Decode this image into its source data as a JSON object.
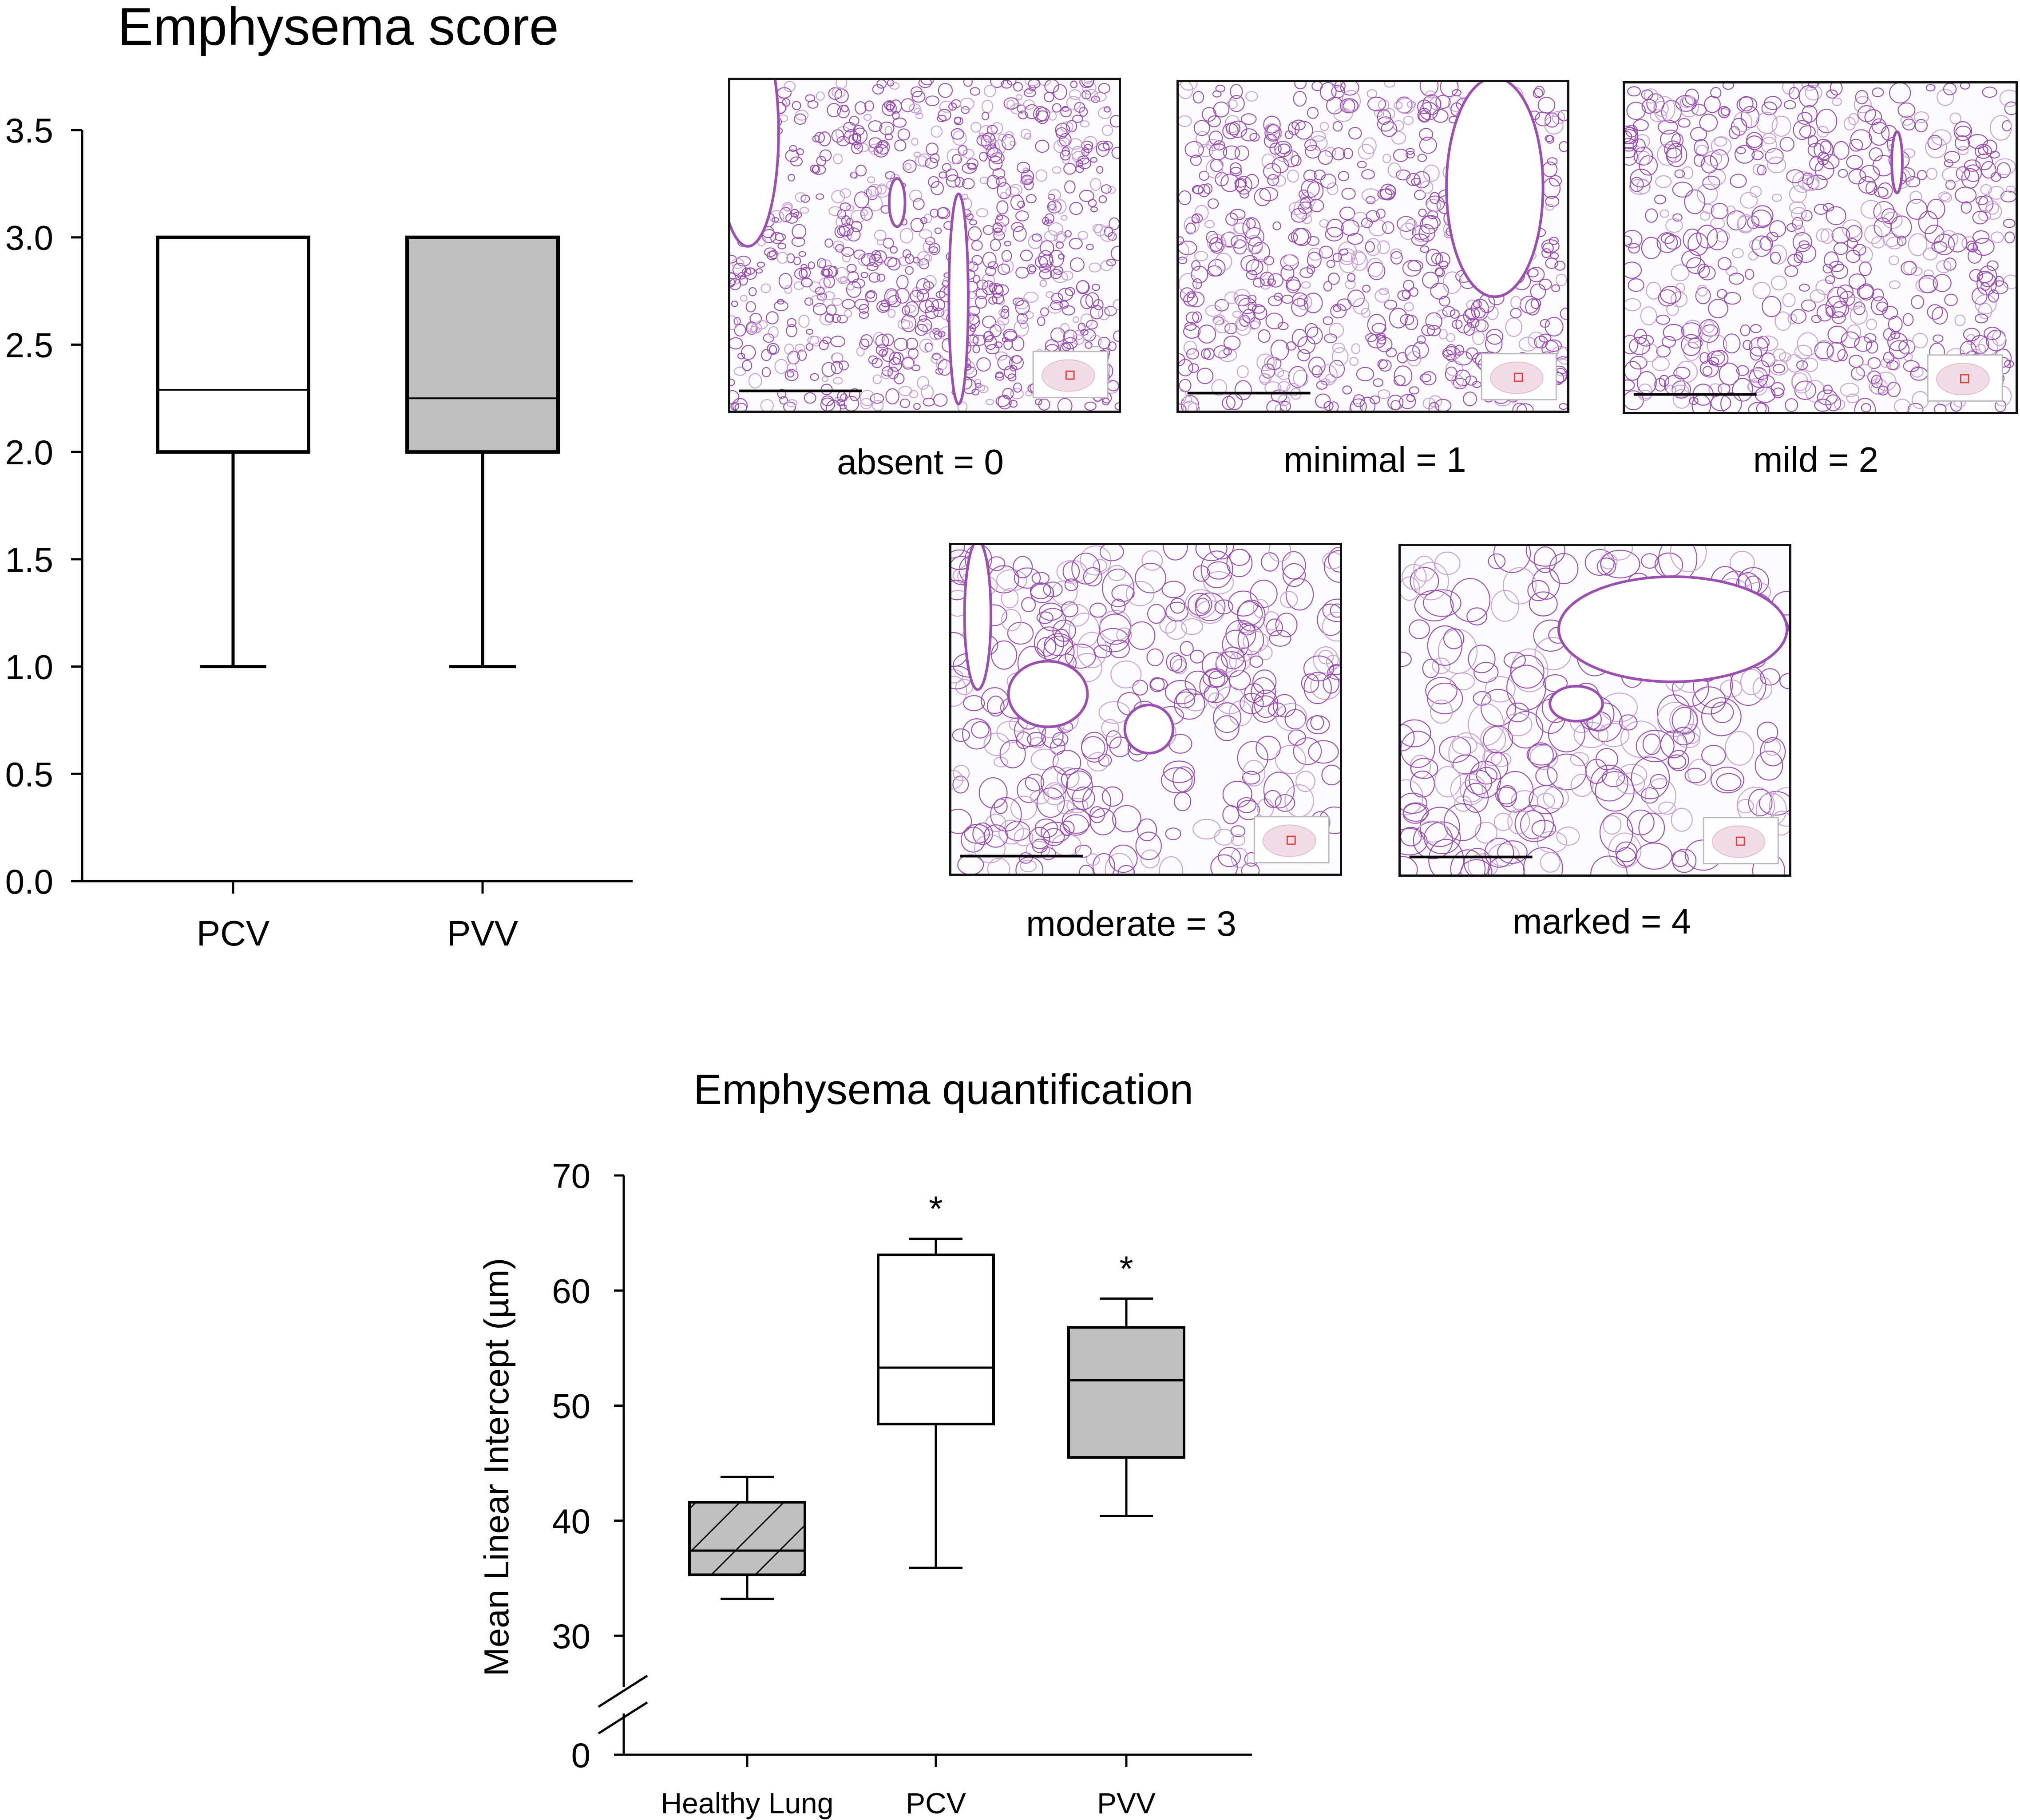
{
  "chart_data": [
    {
      "type": "box",
      "title": "Emphysema score",
      "ylim": [
        0,
        3.5
      ],
      "yticks": [
        "0.0",
        "0.5",
        "1.0",
        "1.5",
        "2.0",
        "2.5",
        "3.0",
        "3.5"
      ],
      "categories": [
        "PCV",
        "PVV"
      ],
      "boxes": [
        {
          "category": "PCV",
          "min": 1.0,
          "q1": 2.0,
          "median": 2.29,
          "q3": 3.0,
          "max": 3.0,
          "color": "#ffffff"
        },
        {
          "category": "PVV",
          "min": 1.0,
          "q1": 2.0,
          "median": 2.25,
          "q3": 3.0,
          "max": 3.0,
          "color": "#c0c0c0"
        }
      ],
      "grid": false
    },
    {
      "type": "box",
      "title": "Emphysema quantification",
      "ylabel": "Mean Linear Intercept (µm)",
      "ylim": [
        30,
        70
      ],
      "axis_break": true,
      "yticks": [
        "0",
        "30",
        "40",
        "50",
        "60",
        "70"
      ],
      "categories": [
        "Healthy Lung",
        "PCV",
        "PVV"
      ],
      "boxes": [
        {
          "category": "Healthy Lung",
          "min": 33.2,
          "q1": 35.3,
          "median": 37.4,
          "q3": 41.6,
          "max": 43.8,
          "color": "#c0c0c0",
          "pattern": "diagonal-hatch",
          "annotation": ""
        },
        {
          "category": "PCV",
          "min": 35.9,
          "q1": 48.4,
          "median": 53.3,
          "q3": 63.1,
          "max": 64.5,
          "color": "#ffffff",
          "annotation": "*"
        },
        {
          "category": "PVV",
          "min": 40.4,
          "q1": 45.5,
          "median": 52.2,
          "q3": 56.8,
          "max": 59.3,
          "color": "#c0c0c0",
          "annotation": "*"
        }
      ],
      "grid": false
    }
  ],
  "score_examples": [
    {
      "label": "absent = 0",
      "score": 0
    },
    {
      "label": "minimal = 1",
      "score": 1
    },
    {
      "label": "mild = 2",
      "score": 2
    },
    {
      "label": "moderate = 3",
      "score": 3
    },
    {
      "label": "marked = 4",
      "score": 4
    }
  ],
  "colors": {
    "tissue": "#9b4fb0",
    "tissue_light": "#c9a2d6",
    "slide_bg": "#fcfbfd",
    "box_gray": "#c0c0c0"
  }
}
